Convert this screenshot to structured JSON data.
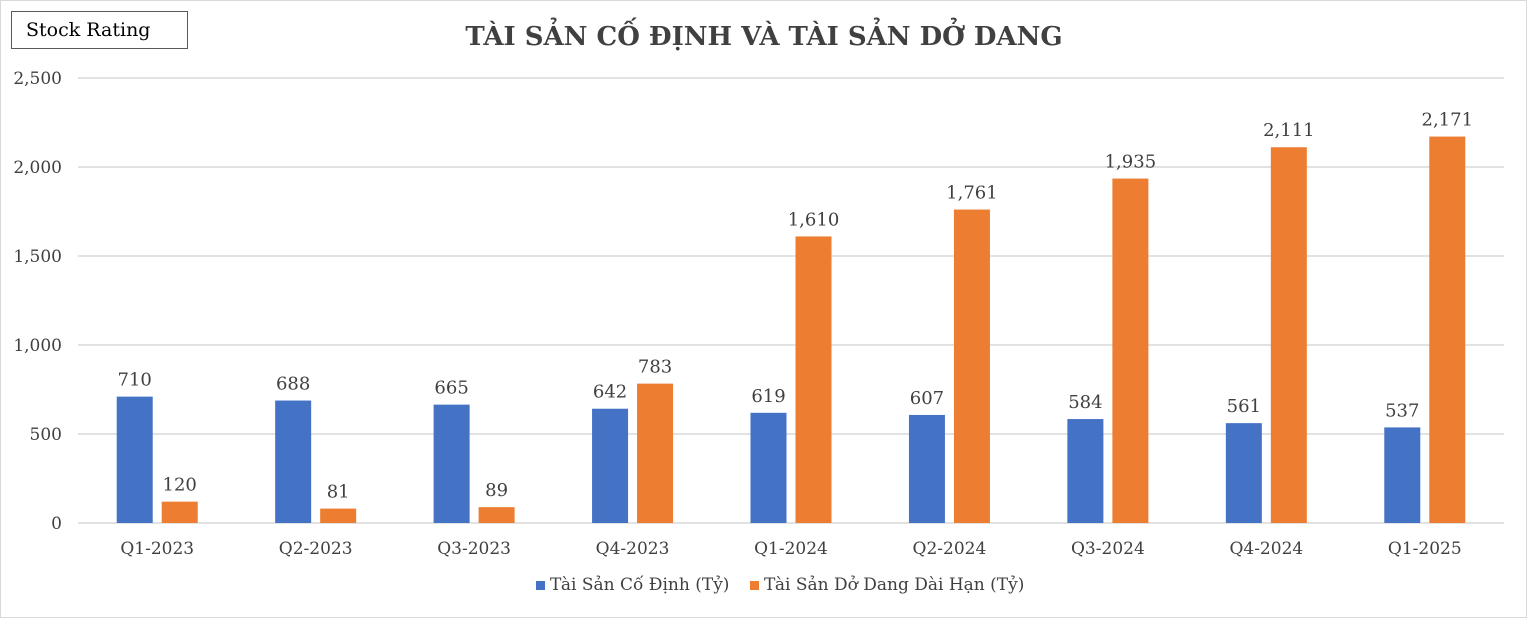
{
  "badge": {
    "label": "Stock Rating"
  },
  "colors": {
    "series_1": "#4472C4",
    "series_2": "#ED7D31",
    "grid": "#d9d9d9",
    "text": "#404040"
  },
  "chart_data": {
    "type": "bar",
    "title": "TÀI SẢN CỐ ĐỊNH VÀ TÀI SẢN DỞ DANG",
    "xlabel": "",
    "ylabel": "",
    "categories": [
      "Q1-2023",
      "Q2-2023",
      "Q3-2023",
      "Q4-2023",
      "Q1-2024",
      "Q2-2024",
      "Q3-2024",
      "Q4-2024",
      "Q1-2025"
    ],
    "series": [
      {
        "name": "Tài Sản Cố Định (Tỷ)",
        "color": "#4472C4",
        "values": [
          710,
          688,
          665,
          642,
          619,
          607,
          584,
          561,
          537
        ]
      },
      {
        "name": "Tài Sản Dở Dang Dài Hạn (Tỷ)",
        "color": "#ED7D31",
        "values": [
          120,
          81,
          89,
          783,
          1610,
          1761,
          1935,
          2111,
          2171
        ]
      }
    ],
    "ylim": [
      0,
      2500
    ],
    "yticks": [
      0,
      500,
      1000,
      1500,
      2000,
      2500
    ],
    "ytick_labels": [
      "0",
      "500",
      "1,000",
      "1,500",
      "2,000",
      "2,500"
    ],
    "data_labels": [
      [
        "710",
        "688",
        "665",
        "642",
        "619",
        "607",
        "584",
        "561",
        "537"
      ],
      [
        "120",
        "81",
        "89",
        "783",
        "1,610",
        "1,761",
        "1,935",
        "2,111",
        "2,171"
      ]
    ],
    "grid": true,
    "legend_position": "bottom"
  }
}
